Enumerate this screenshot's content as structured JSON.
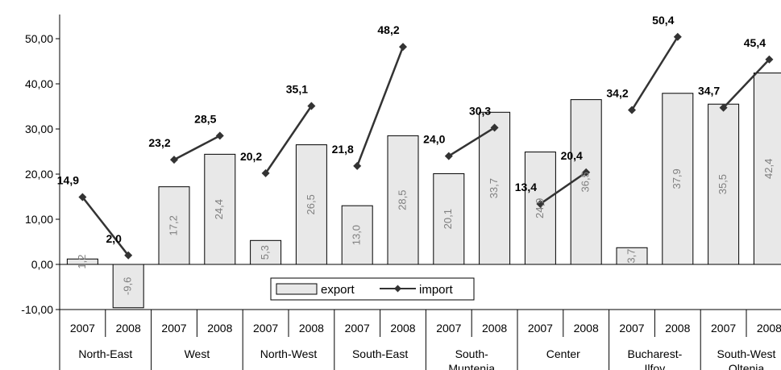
{
  "chart_data": {
    "type": "bar",
    "categories": [
      "2007",
      "2008",
      "2007",
      "2008",
      "2007",
      "2008",
      "2007",
      "2008",
      "2007",
      "2008",
      "2007",
      "2008",
      "2007",
      "2008",
      "2007",
      "2008"
    ],
    "groups": [
      "North-East",
      "West",
      "North-West",
      "South-East",
      "South-\nMuntenia",
      "Center",
      "Bucharest-\nIlfov",
      "South-West\nOltenia"
    ],
    "series": [
      {
        "name": "export",
        "type": "bar",
        "color": "#e8e8e8",
        "values": [
          1.2,
          -9.6,
          17.2,
          24.4,
          5.3,
          26.5,
          13.0,
          28.5,
          20.1,
          33.7,
          24.9,
          36.5,
          3.7,
          37.9,
          35.5,
          42.4
        ],
        "labels": [
          "1,2",
          "-9,6",
          "17,2",
          "24,4",
          "5,3",
          "26,5",
          "13,0",
          "28,5",
          "20,1",
          "33,7",
          "24,9",
          "36,5",
          "3,7",
          "37,9",
          "35,5",
          "42,4"
        ]
      },
      {
        "name": "import",
        "type": "line",
        "color": "#333333",
        "values": [
          14.9,
          2.0,
          23.2,
          28.5,
          20.2,
          35.1,
          21.8,
          48.2,
          24.0,
          30.3,
          13.4,
          20.4,
          34.2,
          50.4,
          34.7,
          45.4
        ],
        "labels": [
          "14,9",
          "2,0",
          "23,2",
          "28,5",
          "20,2",
          "35,1",
          "21,8",
          "48,2",
          "24,0",
          "30,3",
          "13,4",
          "20,4",
          "34,2",
          "50,4",
          "34,7",
          "45,4"
        ]
      }
    ],
    "yticks": [
      "-10,00",
      "0,00",
      "10,00",
      "20,00",
      "30,00",
      "40,00",
      "50,00"
    ],
    "ylim": [
      -10,
      55
    ],
    "legend": {
      "position": "bottom-center",
      "entries": [
        "export",
        "import"
      ]
    },
    "grid": false
  }
}
